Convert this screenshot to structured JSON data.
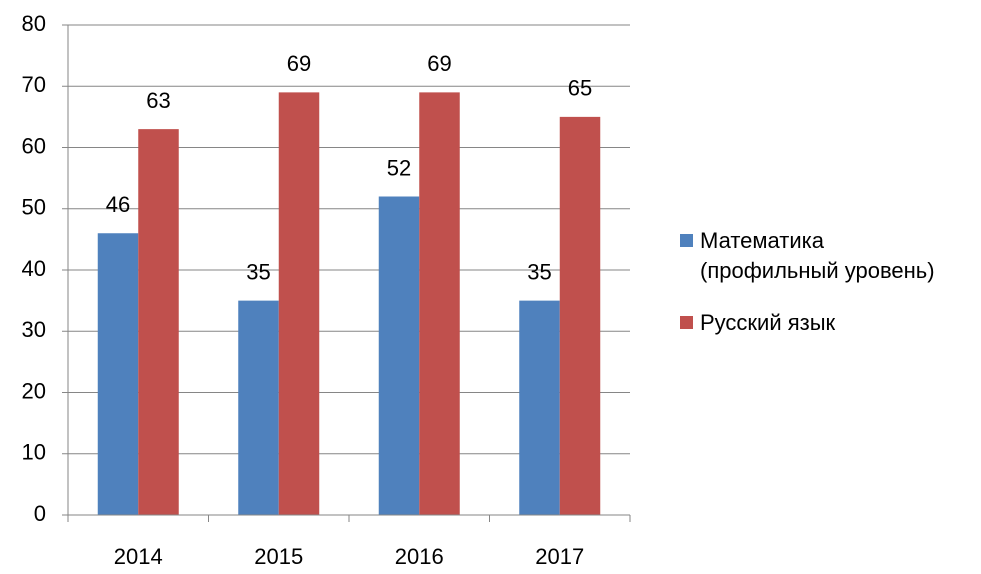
{
  "chart_data": {
    "type": "bar",
    "categories": [
      "2014",
      "2015",
      "2016",
      "2017"
    ],
    "series": [
      {
        "name": "Математика\n(профильный уровень)",
        "color": "#4f81bd",
        "values": [
          46,
          35,
          52,
          35
        ]
      },
      {
        "name": "Русский язык",
        "color": "#c0504d",
        "values": [
          63,
          69,
          69,
          65
        ]
      }
    ],
    "ylim": [
      0,
      80
    ],
    "yticks": [
      0,
      10,
      20,
      30,
      40,
      50,
      60,
      70,
      80
    ],
    "grid": true,
    "legend": "right"
  }
}
